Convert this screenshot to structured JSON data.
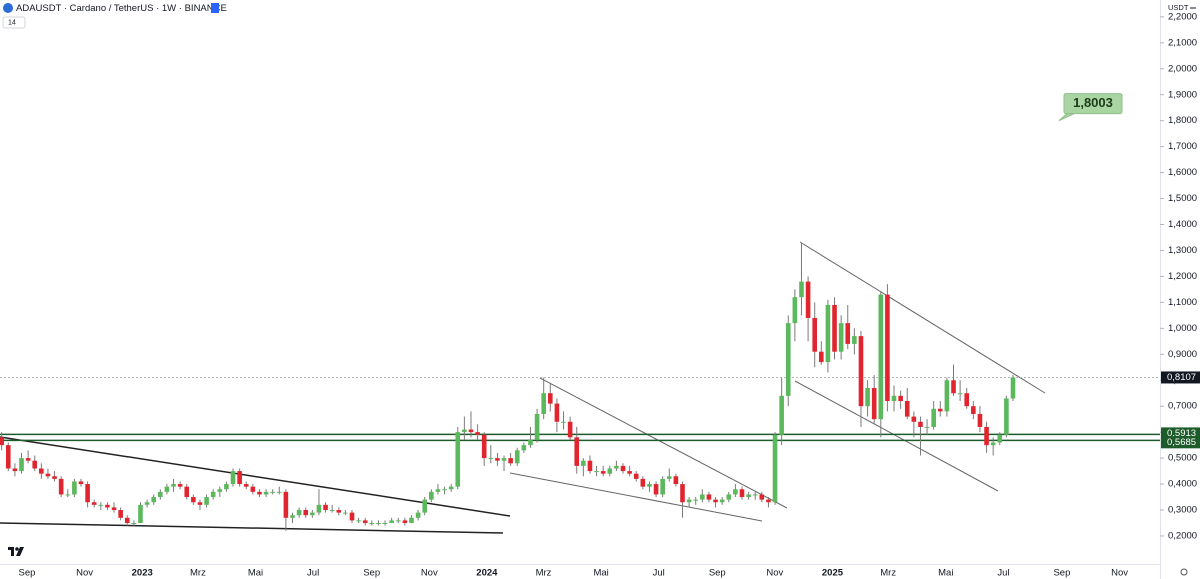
{
  "chart_data": {
    "type": "candlestick",
    "title": "ADAUSDT · Cardano / TetherUS · 1W · BINANCE",
    "indicator_label": "14",
    "quote_unit": "USDT",
    "colors": {
      "up": "#5cb85c",
      "down": "#e0252f",
      "wick": "#7a7a7a",
      "level": "#1e5b2a",
      "last": "#131722"
    },
    "grid": false,
    "ylim": [
      0.092,
      2.265
    ],
    "yticks": [
      {
        "value": 0.2,
        "label": "0,2000"
      },
      {
        "value": 0.3,
        "label": "0,3000"
      },
      {
        "value": 0.4,
        "label": "0,4000"
      },
      {
        "value": 0.5,
        "label": "0,5000"
      },
      {
        "value": 0.6,
        "label": "0,6000"
      },
      {
        "value": 0.7,
        "label": "0,7000"
      },
      {
        "value": 0.8,
        "label": "0,8000"
      },
      {
        "value": 0.9,
        "label": "0,9000"
      },
      {
        "value": 1.0,
        "label": "1,0000"
      },
      {
        "value": 1.1,
        "label": "1,1000"
      },
      {
        "value": 1.2,
        "label": "1,2000"
      },
      {
        "value": 1.3,
        "label": "1,3000"
      },
      {
        "value": 1.4,
        "label": "1,4000"
      },
      {
        "value": 1.5,
        "label": "1,5000"
      },
      {
        "value": 1.6,
        "label": "1,6000"
      },
      {
        "value": 1.7,
        "label": "1,7000"
      },
      {
        "value": 1.8,
        "label": "1,8000"
      },
      {
        "value": 1.9,
        "label": "1,9000"
      },
      {
        "value": 2.0,
        "label": "2,0000"
      },
      {
        "value": 2.1,
        "label": "2,1000"
      },
      {
        "value": 2.2,
        "label": "2,2000"
      }
    ],
    "xticks": [
      {
        "value": "2022-09",
        "label": "Sep"
      },
      {
        "value": "2022-11",
        "label": "Nov"
      },
      {
        "value": "2023-01",
        "label": "2023"
      },
      {
        "value": "2023-03",
        "label": "Mrz"
      },
      {
        "value": "2023-05",
        "label": "Mai"
      },
      {
        "value": "2023-07",
        "label": "Jul"
      },
      {
        "value": "2023-09",
        "label": "Sep"
      },
      {
        "value": "2023-11",
        "label": "Nov"
      },
      {
        "value": "2024-01",
        "label": "2024"
      },
      {
        "value": "2024-03",
        "label": "Mrz"
      },
      {
        "value": "2024-05",
        "label": "Mai"
      },
      {
        "value": "2024-07",
        "label": "Jul"
      },
      {
        "value": "2024-09",
        "label": "Sep"
      },
      {
        "value": "2024-11",
        "label": "Nov"
      },
      {
        "value": "2025-01",
        "label": "2025"
      },
      {
        "value": "2025-03",
        "label": "Mrz"
      },
      {
        "value": "2025-05",
        "label": "Mai"
      },
      {
        "value": "2025-07",
        "label": "Jul"
      },
      {
        "value": "2025-09",
        "label": "Sep"
      },
      {
        "value": "2025-11",
        "label": "Nov"
      }
    ],
    "levels": [
      {
        "value": 0.5913,
        "label": "0,5913"
      },
      {
        "value": 0.5685,
        "label": "0,5685"
      }
    ],
    "last_price": {
      "value": 0.8107,
      "label": "0,8107"
    },
    "annotation": {
      "value": 1.8003,
      "label": "1,8003"
    },
    "candles": [
      [
        0.58,
        0.6,
        0.53,
        0.55
      ],
      [
        0.55,
        0.56,
        0.45,
        0.46
      ],
      [
        0.46,
        0.48,
        0.43,
        0.45
      ],
      [
        0.45,
        0.52,
        0.44,
        0.5
      ],
      [
        0.5,
        0.53,
        0.48,
        0.49
      ],
      [
        0.49,
        0.51,
        0.45,
        0.46
      ],
      [
        0.46,
        0.48,
        0.42,
        0.44
      ],
      [
        0.44,
        0.46,
        0.42,
        0.43
      ],
      [
        0.43,
        0.45,
        0.41,
        0.42
      ],
      [
        0.42,
        0.43,
        0.35,
        0.36
      ],
      [
        0.36,
        0.38,
        0.35,
        0.36
      ],
      [
        0.36,
        0.42,
        0.35,
        0.41
      ],
      [
        0.41,
        0.42,
        0.39,
        0.4
      ],
      [
        0.4,
        0.41,
        0.31,
        0.33
      ],
      [
        0.33,
        0.34,
        0.31,
        0.32
      ],
      [
        0.32,
        0.33,
        0.3,
        0.32
      ],
      [
        0.32,
        0.33,
        0.3,
        0.31
      ],
      [
        0.31,
        0.33,
        0.29,
        0.3
      ],
      [
        0.3,
        0.31,
        0.26,
        0.27
      ],
      [
        0.27,
        0.28,
        0.24,
        0.25
      ],
      [
        0.25,
        0.26,
        0.24,
        0.25
      ],
      [
        0.25,
        0.33,
        0.25,
        0.32
      ],
      [
        0.32,
        0.34,
        0.31,
        0.33
      ],
      [
        0.33,
        0.36,
        0.32,
        0.35
      ],
      [
        0.35,
        0.38,
        0.34,
        0.37
      ],
      [
        0.37,
        0.4,
        0.36,
        0.39
      ],
      [
        0.39,
        0.42,
        0.37,
        0.4
      ],
      [
        0.4,
        0.41,
        0.38,
        0.39
      ],
      [
        0.39,
        0.4,
        0.34,
        0.35
      ],
      [
        0.35,
        0.36,
        0.32,
        0.33
      ],
      [
        0.33,
        0.34,
        0.3,
        0.32
      ],
      [
        0.32,
        0.36,
        0.31,
        0.35
      ],
      [
        0.35,
        0.38,
        0.34,
        0.37
      ],
      [
        0.37,
        0.39,
        0.35,
        0.38
      ],
      [
        0.38,
        0.41,
        0.37,
        0.4
      ],
      [
        0.4,
        0.46,
        0.39,
        0.45
      ],
      [
        0.45,
        0.46,
        0.39,
        0.4
      ],
      [
        0.4,
        0.41,
        0.38,
        0.39
      ],
      [
        0.39,
        0.4,
        0.36,
        0.37
      ],
      [
        0.37,
        0.38,
        0.35,
        0.36
      ],
      [
        0.36,
        0.38,
        0.35,
        0.37
      ],
      [
        0.37,
        0.38,
        0.36,
        0.37
      ],
      [
        0.37,
        0.39,
        0.36,
        0.37
      ],
      [
        0.37,
        0.38,
        0.22,
        0.27
      ],
      [
        0.27,
        0.29,
        0.25,
        0.28
      ],
      [
        0.28,
        0.31,
        0.27,
        0.3
      ],
      [
        0.3,
        0.31,
        0.27,
        0.28
      ],
      [
        0.28,
        0.3,
        0.27,
        0.29
      ],
      [
        0.29,
        0.38,
        0.28,
        0.32
      ],
      [
        0.32,
        0.33,
        0.29,
        0.3
      ],
      [
        0.3,
        0.32,
        0.29,
        0.3
      ],
      [
        0.3,
        0.31,
        0.28,
        0.29
      ],
      [
        0.29,
        0.3,
        0.28,
        0.29
      ],
      [
        0.29,
        0.3,
        0.25,
        0.26
      ],
      [
        0.26,
        0.27,
        0.25,
        0.26
      ],
      [
        0.26,
        0.27,
        0.24,
        0.25
      ],
      [
        0.25,
        0.26,
        0.24,
        0.25
      ],
      [
        0.25,
        0.26,
        0.24,
        0.25
      ],
      [
        0.25,
        0.26,
        0.24,
        0.25
      ],
      [
        0.25,
        0.27,
        0.25,
        0.26
      ],
      [
        0.26,
        0.27,
        0.25,
        0.26
      ],
      [
        0.26,
        0.27,
        0.24,
        0.25
      ],
      [
        0.25,
        0.28,
        0.25,
        0.27
      ],
      [
        0.27,
        0.3,
        0.26,
        0.29
      ],
      [
        0.29,
        0.35,
        0.28,
        0.34
      ],
      [
        0.34,
        0.38,
        0.33,
        0.37
      ],
      [
        0.37,
        0.4,
        0.36,
        0.38
      ],
      [
        0.38,
        0.39,
        0.36,
        0.38
      ],
      [
        0.38,
        0.4,
        0.37,
        0.39
      ],
      [
        0.39,
        0.62,
        0.38,
        0.6
      ],
      [
        0.6,
        0.66,
        0.57,
        0.61
      ],
      [
        0.61,
        0.68,
        0.58,
        0.6
      ],
      [
        0.6,
        0.63,
        0.57,
        0.59
      ],
      [
        0.59,
        0.6,
        0.47,
        0.5
      ],
      [
        0.5,
        0.55,
        0.48,
        0.5
      ],
      [
        0.5,
        0.52,
        0.47,
        0.49
      ],
      [
        0.49,
        0.51,
        0.45,
        0.5
      ],
      [
        0.5,
        0.52,
        0.47,
        0.48
      ],
      [
        0.48,
        0.54,
        0.47,
        0.53
      ],
      [
        0.53,
        0.56,
        0.52,
        0.55
      ],
      [
        0.55,
        0.62,
        0.54,
        0.57
      ],
      [
        0.57,
        0.69,
        0.56,
        0.67
      ],
      [
        0.67,
        0.81,
        0.65,
        0.75
      ],
      [
        0.75,
        0.79,
        0.68,
        0.71
      ],
      [
        0.71,
        0.73,
        0.6,
        0.64
      ],
      [
        0.64,
        0.68,
        0.61,
        0.64
      ],
      [
        0.64,
        0.66,
        0.57,
        0.58
      ],
      [
        0.58,
        0.62,
        0.44,
        0.47
      ],
      [
        0.47,
        0.5,
        0.43,
        0.49
      ],
      [
        0.49,
        0.51,
        0.44,
        0.45
      ],
      [
        0.45,
        0.47,
        0.43,
        0.45
      ],
      [
        0.45,
        0.47,
        0.43,
        0.44
      ],
      [
        0.44,
        0.47,
        0.43,
        0.46
      ],
      [
        0.46,
        0.49,
        0.45,
        0.47
      ],
      [
        0.47,
        0.48,
        0.44,
        0.45
      ],
      [
        0.45,
        0.47,
        0.43,
        0.44
      ],
      [
        0.44,
        0.45,
        0.41,
        0.42
      ],
      [
        0.42,
        0.43,
        0.38,
        0.39
      ],
      [
        0.39,
        0.41,
        0.37,
        0.4
      ],
      [
        0.4,
        0.41,
        0.35,
        0.36
      ],
      [
        0.36,
        0.43,
        0.35,
        0.42
      ],
      [
        0.42,
        0.46,
        0.41,
        0.43
      ],
      [
        0.43,
        0.44,
        0.39,
        0.4
      ],
      [
        0.4,
        0.41,
        0.27,
        0.33
      ],
      [
        0.33,
        0.35,
        0.31,
        0.34
      ],
      [
        0.34,
        0.35,
        0.32,
        0.34
      ],
      [
        0.34,
        0.38,
        0.33,
        0.36
      ],
      [
        0.36,
        0.37,
        0.33,
        0.34
      ],
      [
        0.34,
        0.35,
        0.31,
        0.33
      ],
      [
        0.33,
        0.35,
        0.32,
        0.34
      ],
      [
        0.34,
        0.37,
        0.33,
        0.36
      ],
      [
        0.36,
        0.4,
        0.35,
        0.38
      ],
      [
        0.38,
        0.39,
        0.34,
        0.35
      ],
      [
        0.35,
        0.37,
        0.34,
        0.36
      ],
      [
        0.36,
        0.37,
        0.34,
        0.36
      ],
      [
        0.36,
        0.37,
        0.33,
        0.34
      ],
      [
        0.34,
        0.35,
        0.31,
        0.33
      ],
      [
        0.33,
        0.6,
        0.32,
        0.59
      ],
      [
        0.59,
        0.81,
        0.55,
        0.74
      ],
      [
        0.74,
        1.05,
        0.7,
        1.02
      ],
      [
        1.02,
        1.15,
        0.95,
        1.12
      ],
      [
        1.12,
        1.33,
        1.05,
        1.18
      ],
      [
        1.18,
        1.2,
        0.95,
        1.04
      ],
      [
        1.04,
        1.1,
        0.85,
        0.91
      ],
      [
        0.91,
        0.95,
        0.86,
        0.87
      ],
      [
        0.87,
        1.11,
        0.83,
        1.09
      ],
      [
        1.09,
        1.12,
        0.88,
        0.91
      ],
      [
        0.91,
        1.05,
        0.88,
        1.02
      ],
      [
        1.02,
        1.09,
        0.92,
        0.94
      ],
      [
        0.94,
        1.0,
        0.9,
        0.97
      ],
      [
        0.97,
        0.99,
        0.62,
        0.7
      ],
      [
        0.7,
        0.8,
        0.66,
        0.77
      ],
      [
        0.77,
        0.82,
        0.63,
        0.65
      ],
      [
        0.65,
        1.14,
        0.58,
        1.13
      ],
      [
        1.13,
        1.17,
        0.68,
        0.72
      ],
      [
        0.72,
        0.78,
        0.68,
        0.74
      ],
      [
        0.74,
        0.76,
        0.69,
        0.72
      ],
      [
        0.72,
        0.77,
        0.65,
        0.66
      ],
      [
        0.66,
        0.68,
        0.58,
        0.64
      ],
      [
        0.64,
        0.66,
        0.51,
        0.62
      ],
      [
        0.62,
        0.65,
        0.59,
        0.62
      ],
      [
        0.62,
        0.72,
        0.61,
        0.69
      ],
      [
        0.69,
        0.72,
        0.66,
        0.68
      ],
      [
        0.68,
        0.81,
        0.66,
        0.8
      ],
      [
        0.8,
        0.86,
        0.74,
        0.75
      ],
      [
        0.75,
        0.8,
        0.72,
        0.75
      ],
      [
        0.75,
        0.77,
        0.69,
        0.7
      ],
      [
        0.7,
        0.72,
        0.65,
        0.67
      ],
      [
        0.67,
        0.7,
        0.6,
        0.62
      ],
      [
        0.62,
        0.64,
        0.52,
        0.55
      ],
      [
        0.55,
        0.58,
        0.51,
        0.56
      ],
      [
        0.56,
        0.6,
        0.55,
        0.59
      ],
      [
        0.59,
        0.74,
        0.58,
        0.73
      ],
      [
        0.73,
        0.82,
        0.72,
        0.8107
      ]
    ]
  }
}
